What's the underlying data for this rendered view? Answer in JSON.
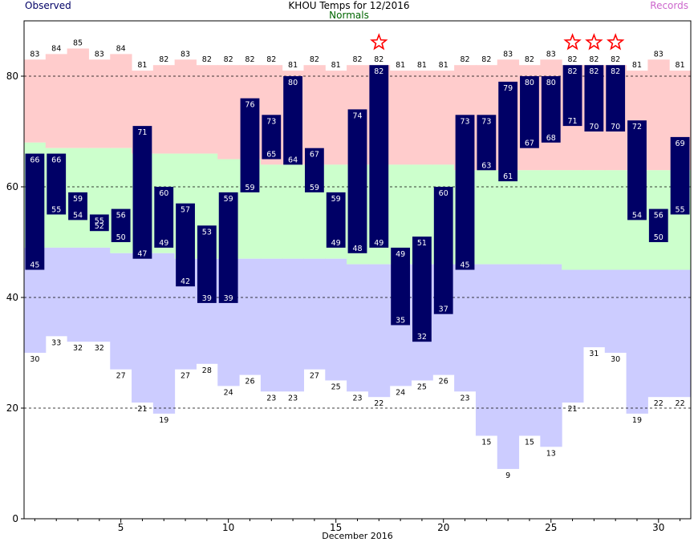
{
  "title": "KHOU Temps for  12/2016",
  "legend": {
    "observed": "Observed",
    "normals": "Normals",
    "records": "Records"
  },
  "colors": {
    "observed_bar": "#000066",
    "normals_title": "#006600",
    "records_title": "#cc66cc",
    "record_high_band": "#ffcccc",
    "normal_band": "#ccffcc",
    "record_low_band": "#ccccff",
    "star": "#ff0000"
  },
  "chart_data": {
    "type": "bar",
    "title": "KHOU Temps for  12/2016",
    "xlabel": "December 2016",
    "ylabel": "",
    "x_ticks": [
      5,
      10,
      15,
      20,
      25,
      30
    ],
    "y_ticks": [
      0,
      20,
      40,
      60,
      80
    ],
    "ylim": [
      0,
      90
    ],
    "xlim": [
      0.5,
      31.5
    ],
    "grid": "dashed horizontal at 20, 40, 60, 80",
    "days": [
      1,
      2,
      3,
      4,
      5,
      6,
      7,
      8,
      9,
      10,
      11,
      12,
      13,
      14,
      15,
      16,
      17,
      18,
      19,
      20,
      21,
      22,
      23,
      24,
      25,
      26,
      27,
      28,
      29,
      30,
      31
    ],
    "observed_high": [
      66,
      66,
      59,
      55,
      56,
      71,
      60,
      57,
      53,
      59,
      76,
      73,
      80,
      67,
      59,
      74,
      82,
      49,
      51,
      60,
      73,
      73,
      79,
      80,
      80,
      82,
      82,
      82,
      72,
      56,
      69
    ],
    "observed_low": [
      45,
      55,
      54,
      52,
      50,
      47,
      49,
      42,
      39,
      39,
      59,
      65,
      64,
      59,
      49,
      48,
      49,
      35,
      32,
      37,
      45,
      63,
      61,
      67,
      68,
      71,
      70,
      70,
      54,
      50,
      55
    ],
    "record_high": [
      83,
      84,
      85,
      83,
      84,
      81,
      82,
      83,
      82,
      82,
      82,
      82,
      81,
      82,
      81,
      82,
      82,
      81,
      81,
      81,
      82,
      82,
      83,
      82,
      83,
      82,
      82,
      82,
      81,
      83,
      81
    ],
    "record_low": [
      30,
      33,
      32,
      32,
      27,
      21,
      19,
      27,
      28,
      24,
      26,
      23,
      23,
      27,
      25,
      23,
      22,
      24,
      25,
      26,
      23,
      15,
      9,
      15,
      13,
      21,
      31,
      30,
      19,
      22,
      22
    ],
    "normal_high": [
      68,
      67,
      67,
      67,
      67,
      66,
      66,
      66,
      66,
      65,
      65,
      64,
      64,
      64,
      64,
      64,
      64,
      64,
      64,
      64,
      63,
      63,
      63,
      63,
      63,
      63,
      63,
      63,
      63,
      63,
      63
    ],
    "normal_low": [
      49,
      49,
      49,
      49,
      48,
      48,
      48,
      47,
      47,
      47,
      47,
      47,
      47,
      47,
      47,
      46,
      46,
      46,
      46,
      46,
      46,
      46,
      46,
      46,
      46,
      45,
      45,
      45,
      45,
      45,
      45
    ],
    "record_high_stars": [
      17,
      26,
      27,
      28
    ]
  }
}
